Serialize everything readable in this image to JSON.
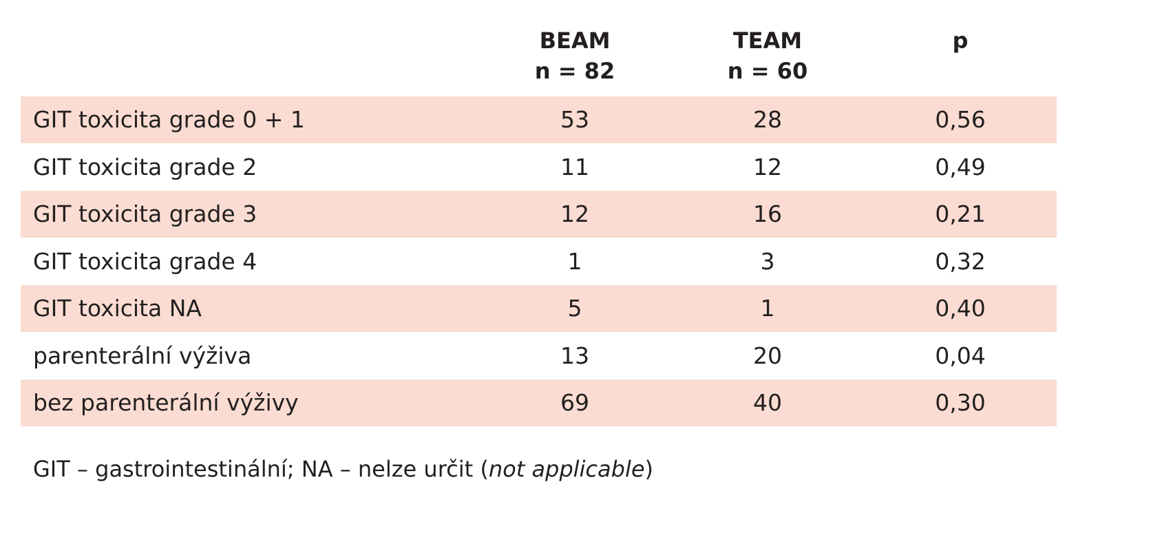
{
  "table": {
    "columns": [
      {
        "name": "BEAM",
        "n": "n = 82"
      },
      {
        "name": "TEAM",
        "n": "n = 60"
      },
      {
        "name": "p"
      }
    ],
    "rows": [
      [
        "GIT toxicita grade 0 + 1",
        53,
        28,
        "0,56"
      ],
      [
        "GIT toxicita grade 2",
        11,
        12,
        "0,49"
      ],
      [
        "GIT toxicita grade 3",
        12,
        16,
        "0,21"
      ],
      [
        "GIT toxicita grade 4",
        1,
        3,
        "0,32"
      ],
      [
        "GIT toxicita NA",
        5,
        1,
        "0,40"
      ],
      [
        "parenterální výživa",
        13,
        20,
        "0,04"
      ],
      [
        "bez parenterální výživy",
        69,
        40,
        "0,30"
      ]
    ]
  },
  "footnote": {
    "text": "GIT – gastrointestinální; NA – nelze určit (",
    "italic": "not applicable",
    "end": ")"
  }
}
